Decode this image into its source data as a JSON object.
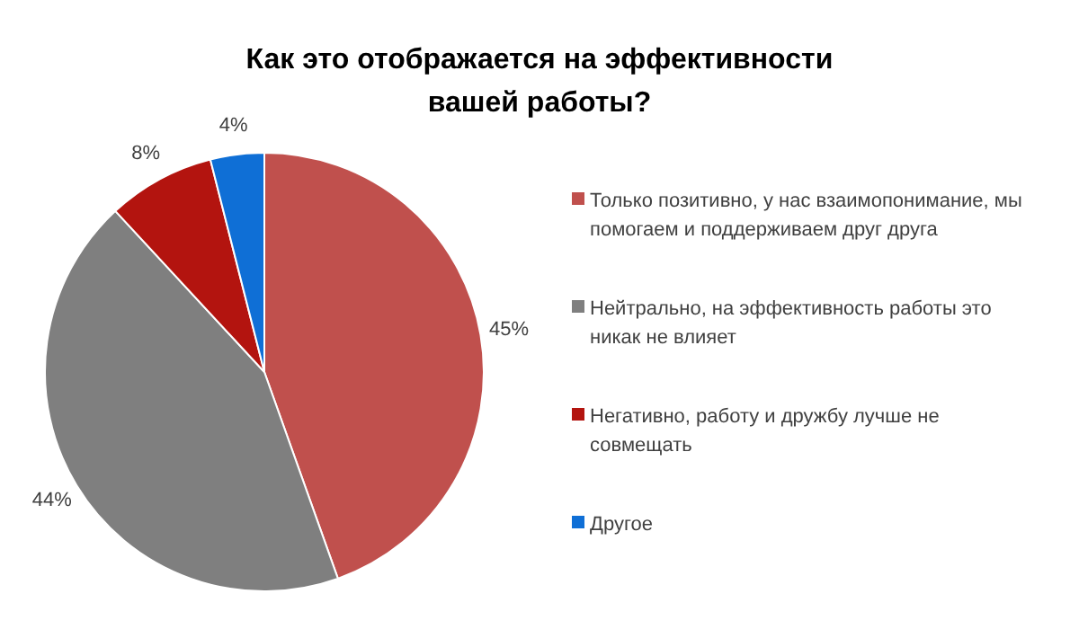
{
  "chart_data": {
    "type": "pie",
    "title": "Как это отображается на эффективности вашей работы?",
    "categories": [
      "Только позитивно, у нас взаимопонимание, мы помогаем и поддерживаем друг друга",
      "Нейтрально, на эффективность работы это никак не влияет",
      "Негативно, работу и дружбу лучше не совмещать",
      "Другое"
    ],
    "values": [
      45,
      44,
      8,
      4
    ],
    "value_labels": [
      "45%",
      "44%",
      "8%",
      "4%"
    ],
    "colors": [
      "#c0504d",
      "#7f7f7f",
      "#b3140f",
      "#0f6fd6"
    ],
    "legend": "right"
  }
}
